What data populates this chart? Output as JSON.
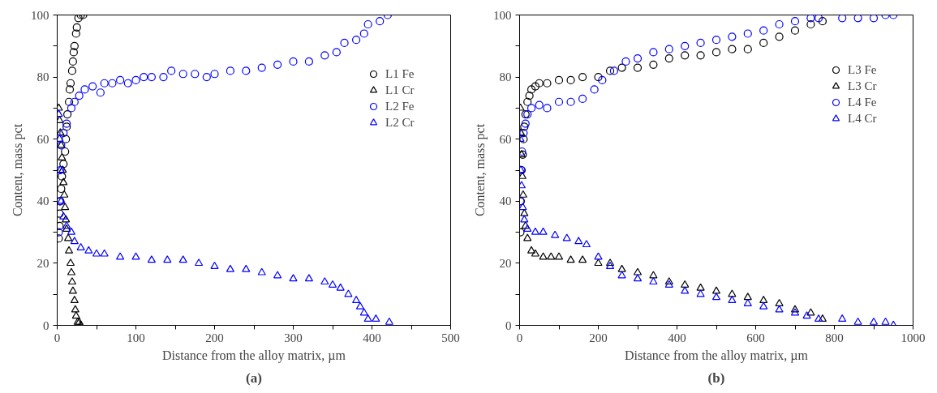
{
  "chart_data": [
    {
      "type": "scatter",
      "xlabel": "Distance from the alloy matrix, µm",
      "ylabel": "Content, mass pct",
      "annotations": [
        "(a)"
      ],
      "xlim": [
        0,
        500
      ],
      "ylim": [
        0,
        100
      ],
      "xticks": [
        0,
        {
          "value": 50,
          "label": null
        },
        100,
        {
          "value": 150,
          "label": null
        },
        200,
        {
          "value": 250,
          "label": null
        },
        300,
        {
          "value": 350,
          "label": null
        },
        400,
        {
          "value": 450,
          "label": null
        },
        500
      ],
      "yticks": [
        0,
        {
          "value": 10,
          "label": null
        },
        20,
        {
          "value": 30,
          "label": null
        },
        40,
        {
          "value": 50,
          "label": null
        },
        60,
        {
          "value": 70,
          "label": null
        },
        80,
        {
          "value": 90,
          "label": null
        },
        100
      ],
      "grid": false,
      "legend": "top right",
      "series": [
        {
          "name": "L1 Fe",
          "color": "#000000",
          "marker": "circle",
          "x": [
            2,
            3,
            3,
            4,
            5,
            6,
            8,
            10,
            11,
            12,
            13,
            15,
            16,
            17,
            19,
            20,
            21,
            22,
            24,
            25,
            27,
            30,
            33
          ],
          "values": [
            28,
            32,
            36,
            40,
            44,
            48,
            52,
            56,
            60,
            64,
            68,
            72,
            76,
            78,
            82,
            85,
            88,
            90,
            94,
            96,
            99,
            100,
            100
          ]
        },
        {
          "name": "L1 Cr",
          "color": "#000000",
          "marker": "triangle",
          "x": [
            2,
            3,
            4,
            5,
            6,
            7,
            8,
            9,
            10,
            11,
            12,
            14,
            15,
            17,
            18,
            19,
            20,
            22,
            23,
            24,
            26,
            28,
            30
          ],
          "values": [
            70,
            66,
            62,
            58,
            54,
            50,
            46,
            42,
            38,
            34,
            31,
            28,
            24,
            20,
            17,
            14,
            11,
            8,
            5,
            3,
            1,
            1,
            0
          ]
        },
        {
          "name": "L2 Fe",
          "color": "#0000ff",
          "marker": "circle",
          "x": [
            2,
            3,
            4,
            5,
            8,
            12,
            18,
            22,
            28,
            35,
            45,
            55,
            60,
            70,
            80,
            90,
            100,
            110,
            120,
            135,
            145,
            160,
            175,
            190,
            200,
            220,
            240,
            260,
            280,
            300,
            320,
            340,
            355,
            365,
            380,
            390,
            395,
            410,
            420
          ],
          "values": [
            30,
            40,
            50,
            58,
            62,
            65,
            70,
            72,
            74,
            76,
            77,
            75,
            78,
            78,
            79,
            78,
            79,
            80,
            80,
            80,
            82,
            81,
            81,
            80,
            81,
            82,
            82,
            83,
            84,
            85,
            85,
            87,
            88,
            91,
            92,
            94,
            97,
            98,
            100
          ]
        },
        {
          "name": "L2 Cr",
          "color": "#0000ff",
          "marker": "triangle",
          "x": [
            2,
            3,
            4,
            5,
            8,
            12,
            18,
            22,
            30,
            40,
            50,
            60,
            80,
            100,
            120,
            140,
            160,
            180,
            200,
            220,
            240,
            260,
            280,
            300,
            320,
            340,
            350,
            360,
            370,
            380,
            385,
            390,
            395,
            405,
            422
          ],
          "values": [
            68,
            60,
            50,
            40,
            35,
            32,
            30,
            27,
            25,
            24,
            23,
            23,
            22,
            22,
            21,
            21,
            21,
            20,
            19,
            18,
            18,
            17,
            16,
            15,
            15,
            14,
            13,
            12,
            10,
            8,
            6,
            4,
            2,
            2,
            1
          ]
        }
      ]
    },
    {
      "type": "scatter",
      "xlabel": "Distance from the alloy matrix, µm",
      "ylabel": "Content, mass pct",
      "annotations": [
        "(b)"
      ],
      "xlim": [
        0,
        1000
      ],
      "ylim": [
        0,
        100
      ],
      "xticks": [
        0,
        {
          "value": 100,
          "label": null
        },
        200,
        {
          "value": 300,
          "label": null
        },
        400,
        {
          "value": 500,
          "label": null
        },
        600,
        {
          "value": 700,
          "label": null
        },
        800,
        {
          "value": 900,
          "label": null
        },
        1000
      ],
      "yticks": [
        0,
        {
          "value": 10,
          "label": null
        },
        20,
        {
          "value": 30,
          "label": null
        },
        40,
        {
          "value": 50,
          "label": null
        },
        60,
        {
          "value": 70,
          "label": null
        },
        80,
        {
          "value": 90,
          "label": null
        },
        100
      ],
      "grid": false,
      "legend": "top right",
      "series": [
        {
          "name": "L3 Fe",
          "color": "#000000",
          "marker": "circle",
          "x": [
            2,
            3,
            5,
            8,
            10,
            12,
            15,
            20,
            25,
            30,
            40,
            50,
            70,
            100,
            130,
            160,
            200,
            230,
            260,
            300,
            340,
            380,
            420,
            460,
            500,
            540,
            580,
            620,
            660,
            700,
            740,
            770
          ],
          "values": [
            30,
            40,
            50,
            55,
            60,
            64,
            68,
            72,
            74,
            76,
            77,
            78,
            78,
            79,
            79,
            80,
            80,
            82,
            83,
            83,
            84,
            86,
            87,
            87,
            88,
            89,
            89,
            91,
            93,
            95,
            97,
            98
          ]
        },
        {
          "name": "L3 Cr",
          "color": "#000000",
          "marker": "triangle",
          "x": [
            2,
            3,
            5,
            7,
            9,
            12,
            15,
            20,
            30,
            40,
            60,
            80,
            100,
            130,
            160,
            200,
            230,
            260,
            300,
            340,
            380,
            420,
            460,
            500,
            540,
            580,
            620,
            660,
            700,
            740,
            770
          ],
          "values": [
            70,
            62,
            55,
            48,
            42,
            36,
            32,
            28,
            24,
            23,
            22,
            22,
            22,
            21,
            21,
            20,
            20,
            18,
            17,
            16,
            14,
            13,
            12,
            11,
            10,
            9,
            8,
            7,
            5,
            4,
            2
          ]
        },
        {
          "name": "L4 Fe",
          "color": "#0000ff",
          "marker": "circle",
          "x": [
            2,
            4,
            6,
            10,
            15,
            20,
            30,
            50,
            70,
            100,
            130,
            160,
            190,
            210,
            240,
            270,
            300,
            340,
            380,
            420,
            460,
            500,
            540,
            580,
            620,
            660,
            700,
            740,
            760,
            820,
            860,
            900,
            930,
            950
          ],
          "values": [
            40,
            50,
            56,
            62,
            65,
            68,
            70,
            71,
            70,
            72,
            72,
            73,
            76,
            79,
            82,
            85,
            86,
            88,
            89,
            90,
            91,
            92,
            93,
            94,
            95,
            97,
            98,
            99,
            99,
            99,
            99,
            99,
            100,
            100
          ]
        },
        {
          "name": "L4 Cr",
          "color": "#0000ff",
          "marker": "triangle",
          "x": [
            2,
            3,
            5,
            8,
            12,
            20,
            40,
            60,
            90,
            120,
            150,
            170,
            200,
            230,
            260,
            300,
            340,
            380,
            420,
            460,
            500,
            540,
            580,
            620,
            660,
            700,
            730,
            760,
            820,
            860,
            900,
            930,
            950
          ],
          "values": [
            60,
            50,
            45,
            38,
            34,
            31,
            30,
            30,
            29,
            28,
            27,
            26,
            22,
            19,
            16,
            15,
            14,
            13,
            11,
            10,
            9,
            8,
            7,
            6,
            5,
            4,
            3,
            2,
            2,
            1,
            1,
            1,
            0
          ]
        }
      ]
    }
  ]
}
